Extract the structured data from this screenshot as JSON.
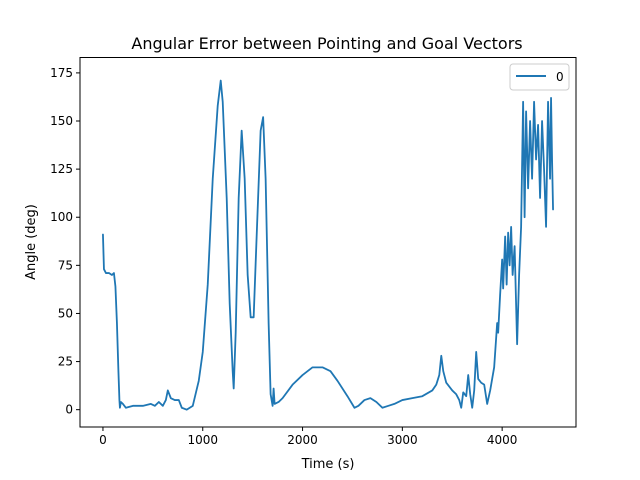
{
  "chart_data": {
    "type": "line",
    "title": "Angular Error between Pointing and Goal Vectors",
    "xlabel": "Time (s)",
    "ylabel": "Angle (deg)",
    "xlim": [
      -230,
      4740
    ],
    "ylim": [
      -9,
      183
    ],
    "xticks": [
      0,
      1000,
      2000,
      3000,
      4000
    ],
    "yticks": [
      0,
      25,
      50,
      75,
      100,
      125,
      150,
      175
    ],
    "grid": false,
    "legend": {
      "position": "top-right",
      "entries": [
        "0"
      ]
    },
    "series": [
      {
        "name": "0",
        "color": "#1f77b4",
        "points": [
          [
            0,
            91
          ],
          [
            10,
            73
          ],
          [
            30,
            71
          ],
          [
            60,
            71
          ],
          [
            90,
            70
          ],
          [
            110,
            71
          ],
          [
            125,
            64
          ],
          [
            140,
            45
          ],
          [
            155,
            20
          ],
          [
            165,
            5
          ],
          [
            170,
            1
          ],
          [
            180,
            4
          ],
          [
            200,
            3
          ],
          [
            230,
            1
          ],
          [
            300,
            2
          ],
          [
            400,
            2
          ],
          [
            480,
            3
          ],
          [
            520,
            2
          ],
          [
            560,
            4
          ],
          [
            600,
            2
          ],
          [
            630,
            5
          ],
          [
            650,
            10
          ],
          [
            680,
            6
          ],
          [
            720,
            5
          ],
          [
            760,
            5
          ],
          [
            790,
            1
          ],
          [
            840,
            0
          ],
          [
            900,
            2
          ],
          [
            960,
            15
          ],
          [
            1000,
            30
          ],
          [
            1050,
            65
          ],
          [
            1100,
            120
          ],
          [
            1150,
            158
          ],
          [
            1180,
            171
          ],
          [
            1200,
            160
          ],
          [
            1240,
            110
          ],
          [
            1270,
            55
          ],
          [
            1300,
            20
          ],
          [
            1310,
            11
          ],
          [
            1330,
            40
          ],
          [
            1360,
            110
          ],
          [
            1390,
            145
          ],
          [
            1420,
            120
          ],
          [
            1450,
            70
          ],
          [
            1480,
            48
          ],
          [
            1510,
            48
          ],
          [
            1540,
            90
          ],
          [
            1580,
            145
          ],
          [
            1605,
            152
          ],
          [
            1630,
            120
          ],
          [
            1660,
            45
          ],
          [
            1680,
            8
          ],
          [
            1700,
            2
          ],
          [
            1710,
            11
          ],
          [
            1720,
            3
          ],
          [
            1760,
            4
          ],
          [
            1800,
            6
          ],
          [
            1900,
            13
          ],
          [
            2000,
            18
          ],
          [
            2100,
            22
          ],
          [
            2200,
            22
          ],
          [
            2280,
            20
          ],
          [
            2350,
            15
          ],
          [
            2450,
            7
          ],
          [
            2520,
            1
          ],
          [
            2560,
            2
          ],
          [
            2620,
            5
          ],
          [
            2680,
            6
          ],
          [
            2740,
            4
          ],
          [
            2800,
            1
          ],
          [
            2860,
            2
          ],
          [
            2920,
            3
          ],
          [
            3000,
            5
          ],
          [
            3100,
            6
          ],
          [
            3200,
            7
          ],
          [
            3300,
            10
          ],
          [
            3340,
            13
          ],
          [
            3370,
            18
          ],
          [
            3390,
            28
          ],
          [
            3410,
            20
          ],
          [
            3440,
            14
          ],
          [
            3470,
            12
          ],
          [
            3500,
            10
          ],
          [
            3540,
            8
          ],
          [
            3570,
            5
          ],
          [
            3590,
            1
          ],
          [
            3610,
            9
          ],
          [
            3640,
            7
          ],
          [
            3660,
            18
          ],
          [
            3680,
            8
          ],
          [
            3700,
            1
          ],
          [
            3720,
            10
          ],
          [
            3740,
            30
          ],
          [
            3760,
            16
          ],
          [
            3790,
            14
          ],
          [
            3820,
            13
          ],
          [
            3850,
            3
          ],
          [
            3880,
            10
          ],
          [
            3920,
            22
          ],
          [
            3950,
            45
          ],
          [
            3960,
            40
          ],
          [
            3980,
            60
          ],
          [
            4000,
            78
          ],
          [
            4010,
            63
          ],
          [
            4030,
            90
          ],
          [
            4045,
            65
          ],
          [
            4060,
            92
          ],
          [
            4075,
            75
          ],
          [
            4090,
            95
          ],
          [
            4105,
            70
          ],
          [
            4125,
            85
          ],
          [
            4150,
            34
          ],
          [
            4170,
            70
          ],
          [
            4190,
            95
          ],
          [
            4210,
            160
          ],
          [
            4225,
            100
          ],
          [
            4240,
            155
          ],
          [
            4260,
            115
          ],
          [
            4280,
            150
          ],
          [
            4300,
            120
          ],
          [
            4320,
            160
          ],
          [
            4340,
            130
          ],
          [
            4360,
            148
          ],
          [
            4380,
            110
          ],
          [
            4400,
            150
          ],
          [
            4420,
            125
          ],
          [
            4440,
            95
          ],
          [
            4460,
            160
          ],
          [
            4480,
            120
          ],
          [
            4490,
            162
          ],
          [
            4500,
            130
          ],
          [
            4510,
            104
          ]
        ]
      }
    ]
  }
}
